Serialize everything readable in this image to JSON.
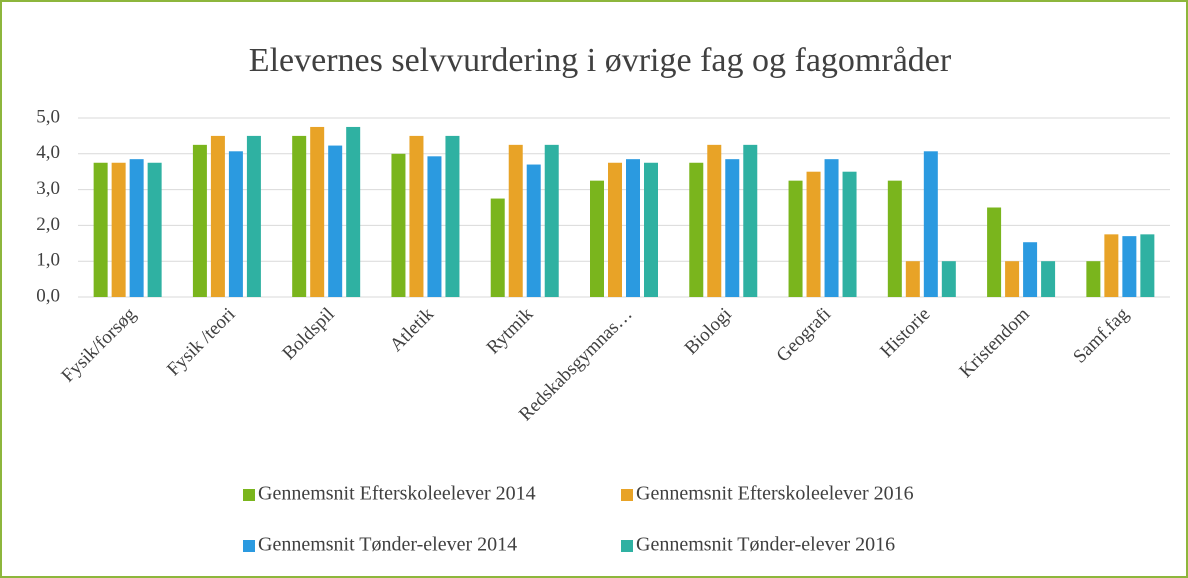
{
  "chart_data": {
    "type": "bar",
    "title": "Elevernes selvvurdering i øvrige fag og fagområder",
    "categories": [
      "Fysik/forsøg",
      "Fysik /teori",
      "Boldspil",
      "Atletik",
      "Rytmik",
      "Redskabsgymnas…",
      "Biologi",
      "Geografi",
      "Historie",
      "Kristendom",
      "Samf.fag"
    ],
    "series": [
      {
        "name": "Gennemsnit Efterskoleelever 2014",
        "color": "#7ab51d",
        "values": [
          3.75,
          4.25,
          4.5,
          4.0,
          2.75,
          3.25,
          3.75,
          3.25,
          3.25,
          2.5,
          1.0
        ]
      },
      {
        "name": "Gennemsnit Efterskoleelever 2016",
        "color": "#e8a327",
        "values": [
          3.75,
          4.5,
          4.75,
          4.5,
          4.25,
          3.75,
          4.25,
          3.5,
          1.0,
          1.0,
          1.75
        ]
      },
      {
        "name": "Gennemsnit Tønder-elever 2014",
        "color": "#2b9ae0",
        "values": [
          3.85,
          4.07,
          4.23,
          3.93,
          3.7,
          3.85,
          3.85,
          3.85,
          4.07,
          1.53,
          1.7
        ]
      },
      {
        "name": "Gennemsnit Tønder-elever 2016",
        "color": "#2fb1a2",
        "values": [
          3.75,
          4.5,
          4.75,
          4.5,
          4.25,
          3.75,
          4.25,
          3.5,
          1.0,
          1.0,
          1.75
        ]
      }
    ],
    "ylim": [
      0,
      5
    ],
    "yticks": [
      {
        "value": 0,
        "label": "0,0"
      },
      {
        "value": 1,
        "label": "1,0"
      },
      {
        "value": 2,
        "label": "2,0"
      },
      {
        "value": 3,
        "label": "3,0"
      },
      {
        "value": 4,
        "label": "4,0"
      },
      {
        "value": 5,
        "label": "5,0"
      }
    ],
    "grid": true
  }
}
